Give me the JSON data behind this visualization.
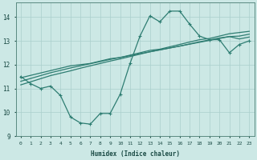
{
  "xlabel": "Humidex (Indice chaleur)",
  "bg_color": "#cce8e5",
  "line_color": "#2e7d72",
  "grid_color": "#aacfcc",
  "xlim": [
    -0.5,
    23.5
  ],
  "ylim": [
    9,
    14.6
  ],
  "yticks": [
    9,
    10,
    11,
    12,
    13,
    14
  ],
  "xticks": [
    0,
    1,
    2,
    3,
    4,
    5,
    6,
    7,
    8,
    9,
    10,
    11,
    12,
    13,
    14,
    15,
    16,
    17,
    18,
    19,
    20,
    21,
    22,
    23
  ],
  "main_series": [
    11.5,
    11.2,
    11.0,
    11.1,
    10.7,
    9.8,
    9.55,
    9.5,
    9.95,
    9.95,
    10.75,
    12.05,
    13.2,
    14.05,
    13.8,
    14.25,
    14.25,
    13.7,
    13.2,
    13.05,
    13.05,
    12.5,
    12.85,
    13.0
  ],
  "trend1": [
    11.45,
    11.55,
    11.65,
    11.75,
    11.85,
    11.95,
    12.0,
    12.05,
    12.15,
    12.25,
    12.3,
    12.4,
    12.5,
    12.6,
    12.65,
    12.75,
    12.85,
    12.95,
    13.05,
    13.1,
    13.2,
    13.3,
    13.35,
    13.4
  ],
  "trend2": [
    11.3,
    11.42,
    11.54,
    11.66,
    11.76,
    11.86,
    11.95,
    12.04,
    12.13,
    12.22,
    12.3,
    12.38,
    12.46,
    12.54,
    12.62,
    12.7,
    12.78,
    12.86,
    12.94,
    13.02,
    13.1,
    13.18,
    13.2,
    13.28
  ],
  "trend3": [
    11.15,
    11.28,
    11.41,
    11.54,
    11.64,
    11.74,
    11.85,
    11.95,
    12.05,
    12.15,
    12.24,
    12.34,
    12.44,
    12.54,
    12.62,
    12.7,
    12.78,
    12.87,
    12.96,
    13.04,
    13.12,
    13.18,
    13.08,
    13.16
  ]
}
